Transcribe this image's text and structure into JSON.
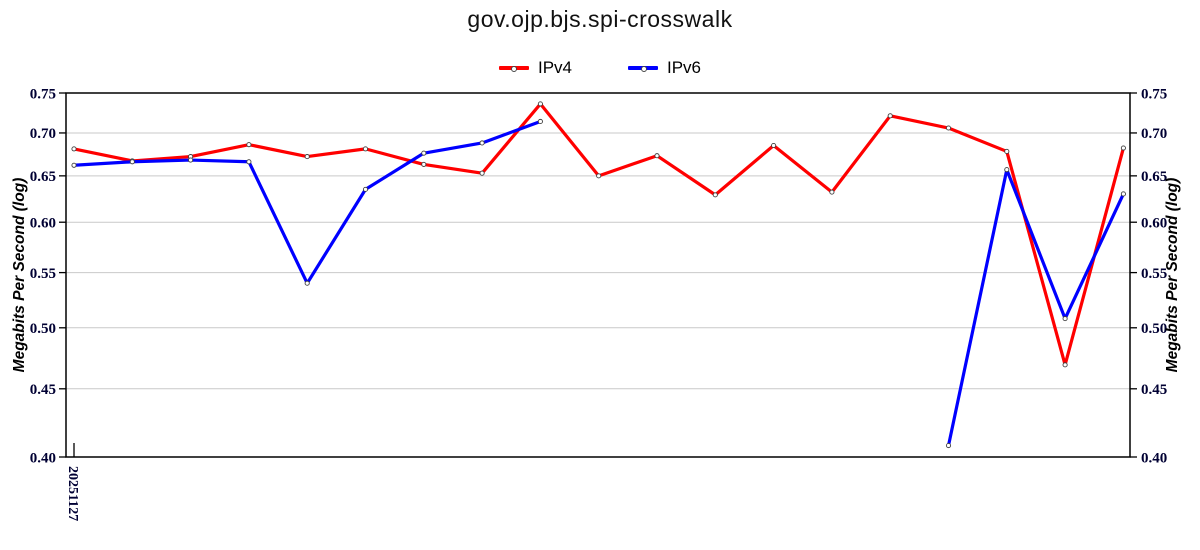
{
  "title": "gov.ojp.bjs.spi-crosswalk",
  "legend": {
    "items": [
      {
        "label": "IPv4",
        "color": "#ff0000"
      },
      {
        "label": "IPv6",
        "color": "#0000ff"
      }
    ]
  },
  "axes": {
    "y_label_left": "Megabits Per Second (log)",
    "y_label_right": "Megabits Per Second (log)",
    "x_first_tick_label": "20251127"
  },
  "chart_data": {
    "type": "line",
    "title": "gov.ojp.bjs.spi-crosswalk",
    "ylabel": "Megabits Per Second (log)",
    "y_scale": "log",
    "ylim": [
      0.4,
      0.75
    ],
    "y_ticks": [
      0.75,
      0.7,
      0.65,
      0.6,
      0.55,
      0.5,
      0.45,
      0.4
    ],
    "x_count": 19,
    "x_tick_labels": {
      "0": "20251127"
    },
    "grid": true,
    "legend_position": "top-center",
    "series": [
      {
        "name": "IPv4",
        "color": "#ff0000",
        "values": [
          0.681,
          0.667,
          0.672,
          0.686,
          0.672,
          0.681,
          0.663,
          0.653,
          0.736,
          0.65,
          0.673,
          0.629,
          0.685,
          0.632,
          0.721,
          0.706,
          0.678,
          0.469,
          0.682
        ]
      },
      {
        "name": "IPv6",
        "color": "#0000ff",
        "values": [
          0.662,
          0.666,
          0.668,
          0.666,
          0.54,
          0.635,
          0.676,
          0.688,
          0.714,
          null,
          null,
          null,
          null,
          null,
          null,
          0.408,
          0.657,
          0.508,
          0.63
        ]
      }
    ],
    "styles": {
      "grid_color": "#c9c9c9",
      "axis_color": "#000000",
      "tick_label_color": "#000033",
      "axis_label_color": "#000000",
      "marker_fill": "#ffffff",
      "marker_stroke": "#404040",
      "line_width": 3.2
    }
  }
}
